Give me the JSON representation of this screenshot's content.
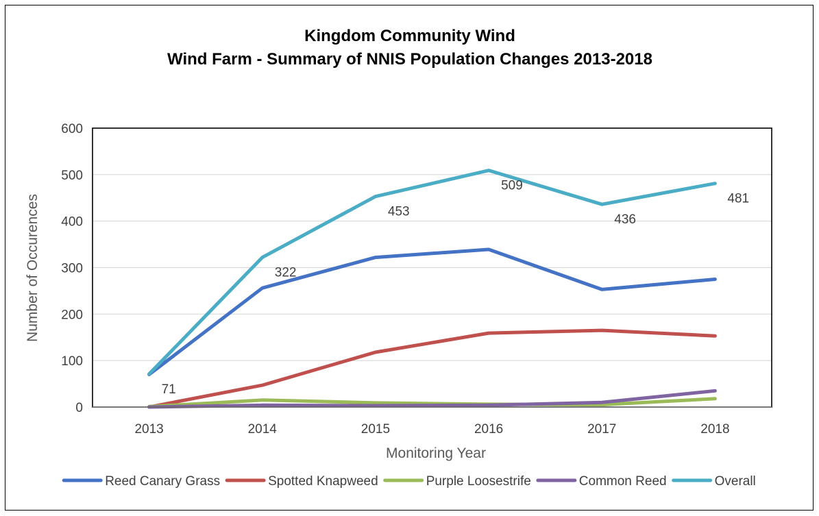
{
  "chart_data": {
    "type": "line",
    "title": "Kingdom Community Wind",
    "subtitle": "Wind Farm - Summary of NNIS Population Changes 2013-2018",
    "xlabel": "Monitoring Year",
    "ylabel": "Number of Occurences",
    "categories": [
      "2013",
      "2014",
      "2015",
      "2016",
      "2017",
      "2018"
    ],
    "ylim": [
      0,
      600
    ],
    "yticks": [
      0,
      100,
      200,
      300,
      400,
      500,
      600
    ],
    "grid": true,
    "legend_position": "bottom",
    "series": [
      {
        "name": "Reed Canary Grass",
        "color": "#4472C4",
        "values": [
          70,
          256,
          322,
          339,
          253,
          275
        ]
      },
      {
        "name": "Spotted Knapweed",
        "color": "#C0504D",
        "values": [
          0,
          47,
          118,
          159,
          165,
          153
        ]
      },
      {
        "name": "Purple Loosestrife",
        "color": "#9BBB59",
        "values": [
          1,
          15,
          9,
          6,
          5,
          18
        ]
      },
      {
        "name": "Common Reed",
        "color": "#8064A2",
        "values": [
          0,
          4,
          3,
          4,
          10,
          35
        ]
      },
      {
        "name": "Overall",
        "color": "#4BACC6",
        "values": [
          71,
          322,
          453,
          509,
          436,
          481
        ],
        "data_labels": [
          "71",
          "322",
          "453",
          "509",
          "436",
          "481"
        ]
      }
    ]
  }
}
